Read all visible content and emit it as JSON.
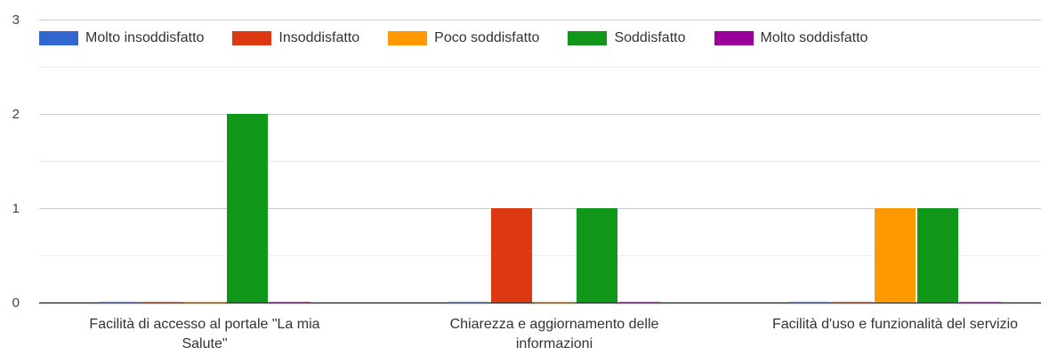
{
  "chart_data": {
    "type": "bar",
    "categories": [
      [
        "Facilità di accesso al portale \"La mia",
        "Salute\""
      ],
      [
        "Chiarezza e aggiornamento delle",
        "informazioni"
      ],
      [
        "Facilità d'uso e funzionalità del servizio"
      ]
    ],
    "series": [
      {
        "name": "Molto insoddisfatto",
        "color": "#3366cc",
        "values": [
          0,
          0,
          0
        ]
      },
      {
        "name": "Insoddisfatto",
        "color": "#dc3912",
        "values": [
          0,
          1,
          0
        ]
      },
      {
        "name": "Poco soddisfatto",
        "color": "#ff9900",
        "values": [
          0,
          0,
          1
        ]
      },
      {
        "name": "Soddisfatto",
        "color": "#109618",
        "values": [
          2,
          1,
          1
        ]
      },
      {
        "name": "Molto soddisfatto",
        "color": "#990099",
        "values": [
          0,
          0,
          0
        ]
      }
    ],
    "yticks": [
      "0",
      "1",
      "2",
      "3"
    ],
    "ylim": [
      0,
      3
    ],
    "grid": true,
    "legend_position": "top-left"
  }
}
